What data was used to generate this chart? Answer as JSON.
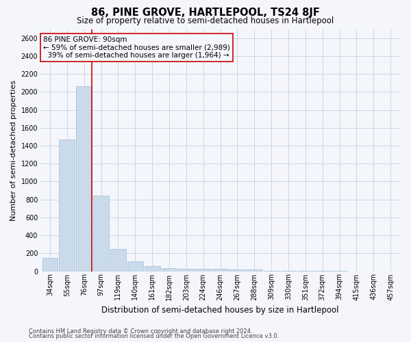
{
  "title": "86, PINE GROVE, HARTLEPOOL, TS24 8JF",
  "subtitle": "Size of property relative to semi-detached houses in Hartlepool",
  "xlabel": "Distribution of semi-detached houses by size in Hartlepool",
  "ylabel": "Number of semi-detached properties",
  "bar_color": "#c9daea",
  "bar_edge_color": "#a0bcd8",
  "grid_color": "#c8d0e0",
  "annotation_box_color": "#cc0000",
  "property_line_color": "#cc0000",
  "categories": [
    "34sqm",
    "55sqm",
    "76sqm",
    "97sqm",
    "119sqm",
    "140sqm",
    "161sqm",
    "182sqm",
    "203sqm",
    "224sqm",
    "246sqm",
    "267sqm",
    "288sqm",
    "309sqm",
    "330sqm",
    "351sqm",
    "372sqm",
    "394sqm",
    "415sqm",
    "436sqm",
    "457sqm"
  ],
  "values": [
    150,
    1470,
    2060,
    840,
    250,
    110,
    60,
    38,
    28,
    28,
    28,
    20,
    18,
    5,
    2,
    2,
    1,
    1,
    0,
    0,
    0
  ],
  "property_index": 2,
  "annotation_line1": "86 PINE GROVE: 90sqm",
  "annotation_line2": "← 59% of semi-detached houses are smaller (2,989)",
  "annotation_line3": "  39% of semi-detached houses are larger (1,964) →",
  "ylim": [
    0,
    2700
  ],
  "yticks": [
    0,
    200,
    400,
    600,
    800,
    1000,
    1200,
    1400,
    1600,
    1800,
    2000,
    2200,
    2400,
    2600
  ],
  "footer1": "Contains HM Land Registry data © Crown copyright and database right 2024.",
  "footer2": "Contains public sector information licensed under the Open Government Licence v3.0.",
  "background_color": "#f4f6fb",
  "title_fontsize": 10.5,
  "subtitle_fontsize": 8.5,
  "ylabel_fontsize": 8,
  "xlabel_fontsize": 8.5,
  "tick_fontsize": 7,
  "annotation_fontsize": 7.5,
  "footer_fontsize": 6
}
